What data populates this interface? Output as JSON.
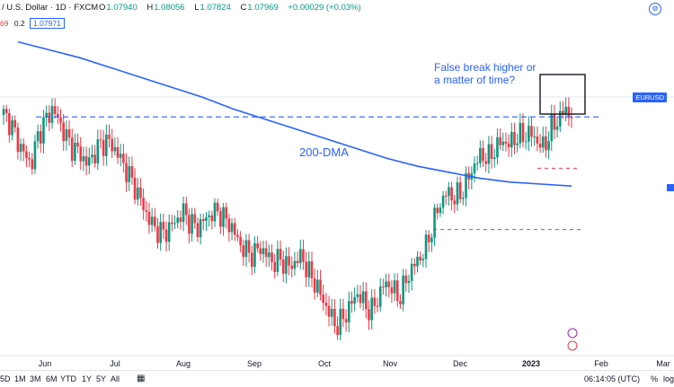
{
  "header": {
    "symbol": "/ U.S. Dollar · 1D · FXCM",
    "open_label": "O",
    "open": "1.07940",
    "high_label": "H",
    "high": "1.08056",
    "low_label": "L",
    "low": "1.07824",
    "close_label": "C",
    "close": "1.07969",
    "change": "+0.00029 (+0.03%)",
    "sub_a": "69",
    "sub_b": "0.2",
    "sub_price": "1.07971",
    "colors": {
      "up": "#089981",
      "down": "#f23645",
      "accent": "#2962ff"
    }
  },
  "annotations": {
    "false_break_line1": "False break higher or",
    "false_break_line2": "a matter of time?",
    "dma_label": "200-DMA"
  },
  "price_axis": {
    "ticker_label": "EURUSD"
  },
  "x_axis": {
    "labels": [
      "Jun",
      "Jul",
      "Aug",
      "Sep",
      "Oct",
      "Nov",
      "Dec",
      "2023",
      "Feb",
      "Mar"
    ]
  },
  "bottombar": {
    "timeframes": [
      "5D",
      "1M",
      "3M",
      "6M",
      "YTD",
      "1Y",
      "5Y",
      "All"
    ],
    "time": "06:14:05 (UTC)",
    "percent": "%",
    "log": "log"
  },
  "chart_data": {
    "type": "candlestick",
    "x_axis_labels": [
      "Jun",
      "Jul",
      "Aug",
      "Sep",
      "Oct",
      "Nov",
      "Dec",
      "2023",
      "Feb",
      "Mar"
    ],
    "close_path": [
      1.075,
      1.071,
      1.062,
      1.055,
      1.05,
      1.065,
      1.072,
      1.078,
      1.072,
      1.064,
      1.058,
      1.056,
      1.05,
      1.055,
      1.06,
      1.062,
      1.058,
      1.052,
      1.045,
      1.038,
      1.03,
      1.022,
      1.017,
      1.015,
      1.018,
      1.022,
      1.026,
      1.02,
      1.018,
      1.022,
      1.025,
      1.026,
      1.022,
      1.018,
      1.01,
      1.006,
      1.004,
      1.008,
      1.004,
      1.0,
      1.002,
      0.998,
      1.0,
      1.004,
      0.995,
      0.99,
      0.982,
      0.975,
      0.968,
      0.972,
      0.978,
      0.985,
      0.98,
      0.975,
      0.982,
      0.99,
      0.988,
      0.982,
      0.99,
      0.998,
      1.002,
      1.008,
      1.02,
      1.03,
      1.036,
      1.033,
      1.035,
      1.042,
      1.05,
      1.055,
      1.053,
      1.058,
      1.062,
      1.06,
      1.064,
      1.064,
      1.066,
      1.062,
      1.058,
      1.068,
      1.072,
      1.078,
      1.075
    ],
    "dma200": [
      1.112,
      1.108,
      1.104,
      1.099,
      1.094,
      1.089,
      1.084,
      1.078,
      1.073,
      1.068,
      1.063,
      1.058,
      1.053,
      1.049,
      1.046,
      1.043,
      1.041,
      1.04,
      1.039
    ],
    "resistance": 1.074,
    "support_lower": 1.017,
    "support_upper": 1.048,
    "current_close": 1.07969,
    "series": [
      {
        "name": "EURUSD",
        "color": "#089981"
      },
      {
        "name": "200-DMA",
        "color": "#2962ff"
      }
    ]
  }
}
